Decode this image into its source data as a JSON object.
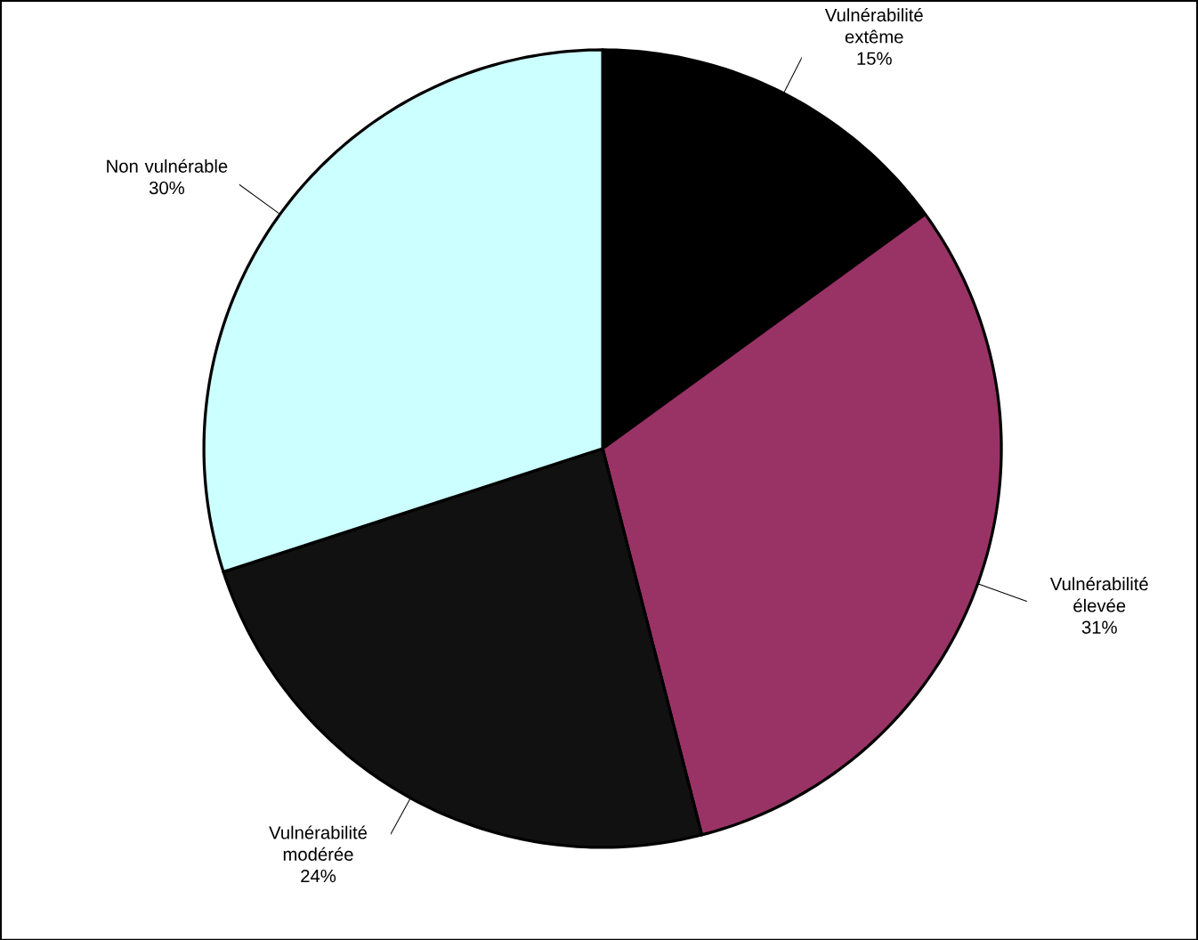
{
  "chart_data": {
    "type": "pie",
    "categories": [
      "Vulnérabilité extême",
      "Vulnérabilité élevée",
      "Vulnérabilité modérée",
      "Non vulnérable"
    ],
    "values": [
      15,
      31,
      24,
      30
    ],
    "value_labels": [
      "15%",
      "31%",
      "24%",
      "30%"
    ],
    "colors": [
      "#000000",
      "#993366",
      "#111111",
      "#ccffff"
    ]
  }
}
